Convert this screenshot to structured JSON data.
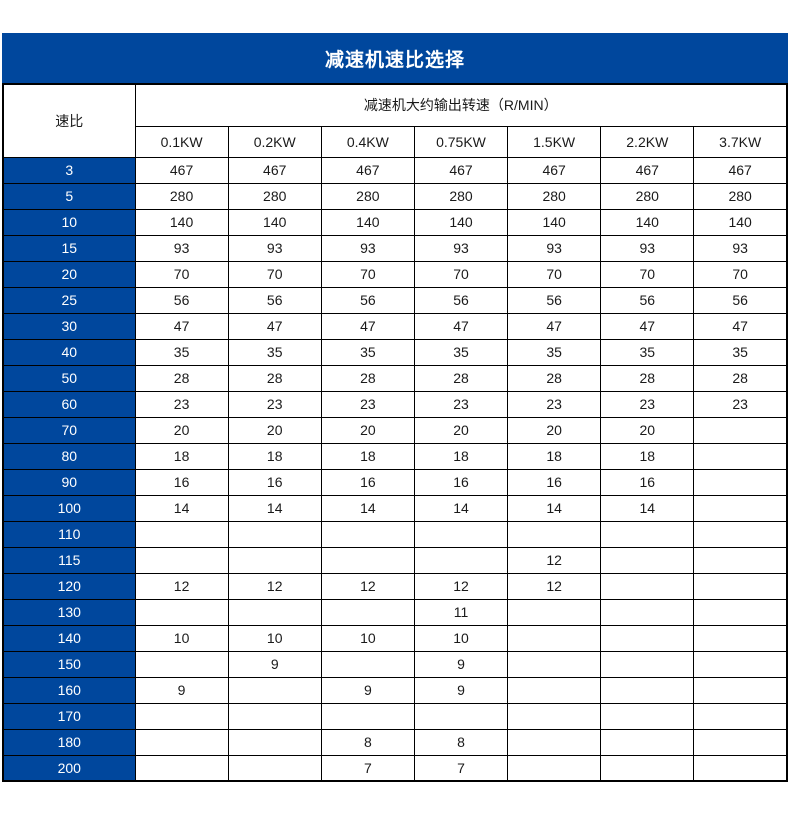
{
  "title": "减速机速比选择",
  "colors": {
    "accent": "#00479d",
    "row_header": "#00479d",
    "border": "#000000",
    "text_light": "#ffffff",
    "text_dark": "#1a1a1a"
  },
  "table": {
    "ratio_header": "速比",
    "span_header": "减速机大约输出转速（R/MIN）",
    "power_columns": [
      "0.1KW",
      "0.2KW",
      "0.4KW",
      "0.75KW",
      "1.5KW",
      "2.2KW",
      "3.7KW"
    ],
    "rows": [
      {
        "ratio": "3",
        "values": [
          "467",
          "467",
          "467",
          "467",
          "467",
          "467",
          "467"
        ]
      },
      {
        "ratio": "5",
        "values": [
          "280",
          "280",
          "280",
          "280",
          "280",
          "280",
          "280"
        ]
      },
      {
        "ratio": "10",
        "values": [
          "140",
          "140",
          "140",
          "140",
          "140",
          "140",
          "140"
        ]
      },
      {
        "ratio": "15",
        "values": [
          "93",
          "93",
          "93",
          "93",
          "93",
          "93",
          "93"
        ]
      },
      {
        "ratio": "20",
        "values": [
          "70",
          "70",
          "70",
          "70",
          "70",
          "70",
          "70"
        ]
      },
      {
        "ratio": "25",
        "values": [
          "56",
          "56",
          "56",
          "56",
          "56",
          "56",
          "56"
        ]
      },
      {
        "ratio": "30",
        "values": [
          "47",
          "47",
          "47",
          "47",
          "47",
          "47",
          "47"
        ]
      },
      {
        "ratio": "40",
        "values": [
          "35",
          "35",
          "35",
          "35",
          "35",
          "35",
          "35"
        ]
      },
      {
        "ratio": "50",
        "values": [
          "28",
          "28",
          "28",
          "28",
          "28",
          "28",
          "28"
        ]
      },
      {
        "ratio": "60",
        "values": [
          "23",
          "23",
          "23",
          "23",
          "23",
          "23",
          "23"
        ]
      },
      {
        "ratio": "70",
        "values": [
          "20",
          "20",
          "20",
          "20",
          "20",
          "20",
          ""
        ]
      },
      {
        "ratio": "80",
        "values": [
          "18",
          "18",
          "18",
          "18",
          "18",
          "18",
          ""
        ]
      },
      {
        "ratio": "90",
        "values": [
          "16",
          "16",
          "16",
          "16",
          "16",
          "16",
          ""
        ]
      },
      {
        "ratio": "100",
        "values": [
          "14",
          "14",
          "14",
          "14",
          "14",
          "14",
          ""
        ]
      },
      {
        "ratio": "110",
        "values": [
          "",
          "",
          "",
          "",
          "",
          "",
          ""
        ]
      },
      {
        "ratio": "115",
        "values": [
          "",
          "",
          "",
          "",
          "12",
          "",
          ""
        ]
      },
      {
        "ratio": "120",
        "values": [
          "12",
          "12",
          "12",
          "12",
          "12",
          "",
          ""
        ]
      },
      {
        "ratio": "130",
        "values": [
          "",
          "",
          "",
          "11",
          "",
          "",
          ""
        ]
      },
      {
        "ratio": "140",
        "values": [
          "10",
          "10",
          "10",
          "10",
          "",
          "",
          ""
        ]
      },
      {
        "ratio": "150",
        "values": [
          "",
          "9",
          "",
          "9",
          "",
          "",
          ""
        ]
      },
      {
        "ratio": "160",
        "values": [
          "9",
          "",
          "9",
          "9",
          "",
          "",
          ""
        ]
      },
      {
        "ratio": "170",
        "values": [
          "",
          "",
          "",
          "",
          "",
          "",
          ""
        ]
      },
      {
        "ratio": "180",
        "values": [
          "",
          "",
          "8",
          "8",
          "",
          "",
          ""
        ]
      },
      {
        "ratio": "200",
        "values": [
          "",
          "",
          "7",
          "7",
          "",
          "",
          ""
        ]
      }
    ]
  }
}
